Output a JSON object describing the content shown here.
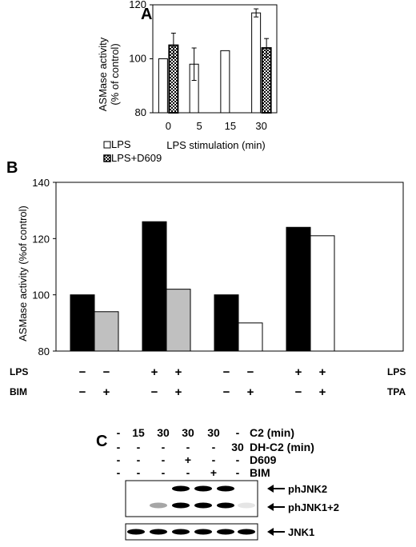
{
  "panel_a": {
    "label": "A",
    "ylabel": "ASMase activity\n(% of control)",
    "xlabel": "LPS stimulation (min)",
    "legend": [
      "LPS",
      "LPS+D609"
    ]
  },
  "panel_b": {
    "label": "B",
    "ylabel": "ASMase activity (%of control)",
    "row1_left": "LPS",
    "row2_left": "BIM",
    "row1_right": "LPS",
    "row2_right": "TPA",
    "row1_signs": [
      "−",
      "−",
      "+",
      "+",
      "−",
      "−",
      "+",
      "+"
    ],
    "row2_signs": [
      "−",
      "+",
      "−",
      "+",
      "−",
      "+",
      "−",
      "+"
    ]
  },
  "panel_c": {
    "label": "C",
    "rows": [
      {
        "label": "C2 (min)",
        "cells": [
          "-",
          "15",
          "30",
          "30",
          "30",
          "-"
        ]
      },
      {
        "label": "DH-C2 (min)",
        "cells": [
          "-",
          "-",
          "-",
          "-",
          "-",
          "30"
        ]
      },
      {
        "label": "D609",
        "cells": [
          "-",
          "-",
          "-",
          "+",
          "-",
          "-"
        ]
      },
      {
        "label": "BIM",
        "cells": [
          "-",
          "-",
          "-",
          "-",
          "+",
          "-"
        ]
      }
    ],
    "band_labels": [
      "phJNK2",
      "phJNK1+2",
      "JNK1"
    ]
  },
  "chart_data": [
    {
      "type": "bar",
      "categories": [
        "0",
        "5",
        "15",
        "30"
      ],
      "xlabel": "LPS stimulation (min)",
      "ylabel": "ASMase activity (% of control)",
      "ylim": [
        80,
        120
      ],
      "yticks": [
        80,
        100,
        120
      ],
      "series": [
        {
          "name": "LPS",
          "values": [
            100,
            98,
            103,
            117
          ],
          "errors": [
            null,
            6,
            null,
            1.5
          ],
          "color": "#ffffff"
        },
        {
          "name": "LPS+D609",
          "values": [
            105,
            null,
            null,
            104
          ],
          "errors": [
            4.5,
            null,
            null,
            3.5
          ],
          "color": "dotted"
        }
      ]
    },
    {
      "type": "bar",
      "ylabel": "ASMase activity (%of control)",
      "ylim": [
        80,
        140
      ],
      "yticks": [
        80,
        100,
        120,
        140
      ],
      "bars": [
        {
          "value": 100,
          "color": "#000000"
        },
        {
          "value": 94,
          "color": "#c0c0c0"
        },
        {
          "value": 126,
          "color": "#000000"
        },
        {
          "value": 102,
          "color": "#c0c0c0"
        },
        {
          "value": 100,
          "color": "#000000"
        },
        {
          "value": 90,
          "color": "#ffffff"
        },
        {
          "value": 124,
          "color": "#000000"
        },
        {
          "value": 121,
          "color": "#ffffff"
        }
      ]
    }
  ]
}
